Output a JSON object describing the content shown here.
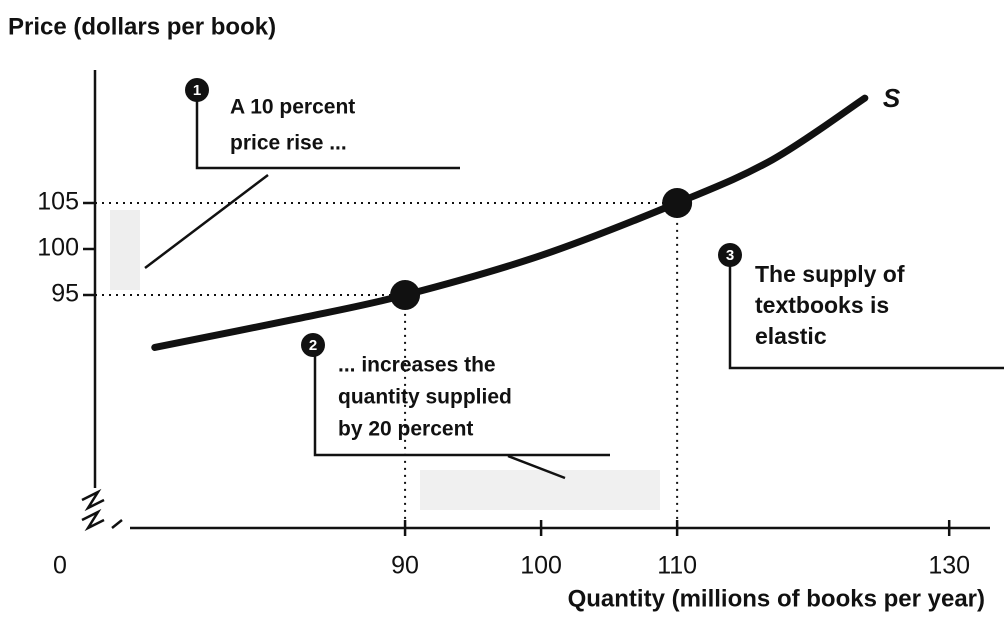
{
  "chart_data": {
    "type": "line",
    "y_label": "Price (dollars per book)",
    "x_label": "Quantity (millions of books per year)",
    "origin_label": "0",
    "series": [
      {
        "name": "S",
        "color": "#111111",
        "x": [
          71.6,
          82,
          90,
          100,
          110,
          117,
          123.8
        ],
        "values": [
          89.3,
          92.4,
          95,
          99.3,
          105,
          109.7,
          116.4
        ]
      }
    ],
    "highlight_points": {
      "x": [
        90,
        110
      ],
      "values": [
        95,
        105
      ],
      "color": "#111111"
    },
    "xlim": [
      70,
      133
    ],
    "ylim": [
      68,
      120
    ],
    "xticks": [
      90,
      100,
      110,
      130
    ],
    "yticks": [
      95,
      100,
      105
    ],
    "annotations": [
      {
        "number": "1",
        "lines": [
          "A 10 percent",
          "price rise ..."
        ]
      },
      {
        "number": "2",
        "lines": [
          "... increases the",
          "quantity supplied",
          "by 20 percent"
        ]
      },
      {
        "number": "3",
        "lines": [
          "The supply of",
          "textbooks is",
          "elastic"
        ]
      }
    ]
  }
}
